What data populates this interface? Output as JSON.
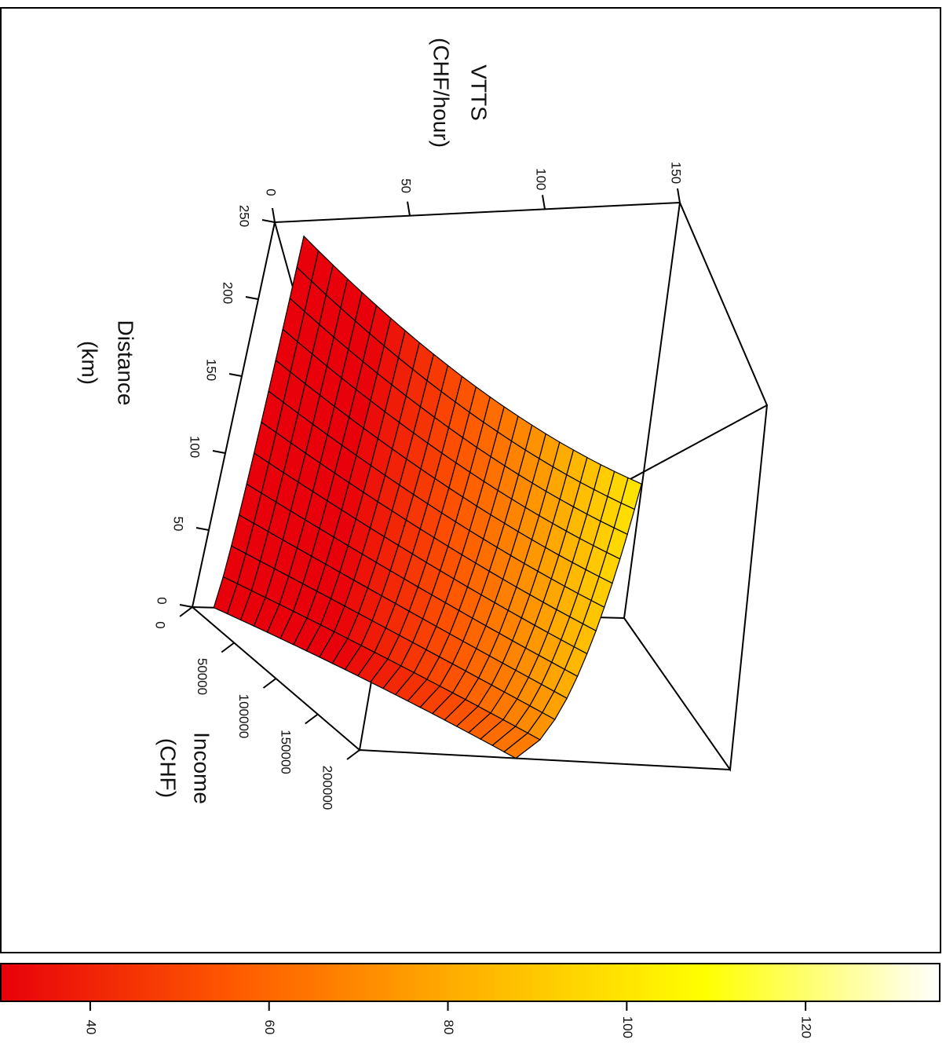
{
  "chart_data": {
    "type": "surface3d",
    "title": "",
    "z_axis": {
      "label_line1": "VTTS",
      "label_line2": "(CHF/hour)",
      "ticks": [
        "0",
        "50",
        "100",
        "150"
      ],
      "range": [
        0,
        150
      ]
    },
    "distance_axis": {
      "label_line1": "Distance",
      "label_line2": "(km)",
      "ticks": [
        "0",
        "50",
        "100",
        "150",
        "200",
        "250"
      ],
      "range": [
        0,
        250
      ]
    },
    "income_axis": {
      "label_line1": "Income",
      "label_line2": "(CHF)",
      "ticks": [
        "0",
        "50000",
        "100000",
        "150000",
        "200000"
      ],
      "range": [
        0,
        200000
      ]
    },
    "colorbar": {
      "ticks": [
        "40",
        "60",
        "80",
        "100",
        "120"
      ],
      "range": [
        30,
        135
      ],
      "colors": [
        "#e8000b",
        "#ff5a00",
        "#ffb300",
        "#ffff00",
        "#ffffff"
      ]
    },
    "surface": {
      "description_rows": 14,
      "distance_samples": [
        0,
        20,
        40,
        60,
        80,
        100,
        120,
        140,
        160,
        180,
        200,
        220,
        240
      ],
      "income_samples": [
        0,
        25000,
        50000,
        75000,
        100000,
        125000,
        150000,
        175000,
        200000
      ]
    }
  }
}
